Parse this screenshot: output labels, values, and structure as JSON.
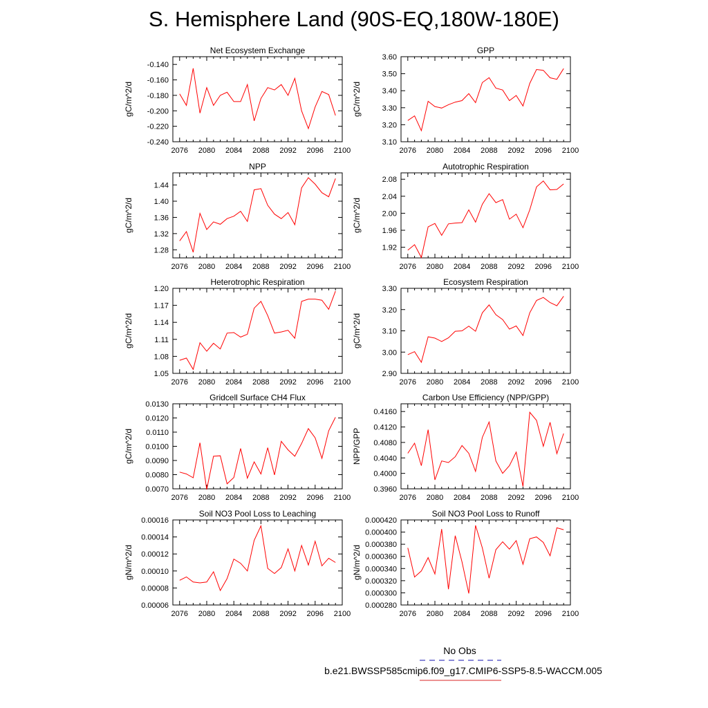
{
  "title": "S. Hemisphere Land (90S-EQ,180W-180E)",
  "legend": {
    "obs_label": "No Obs",
    "obs_color": "#4040c0",
    "model_label": "b.e21.BWSSP585cmip6.f09_g17.CMIP6-SSP5-8.5-WACCM.005",
    "model_color": "#e05050"
  },
  "series_color": "#ff0000",
  "chart_data": [
    {
      "type": "line",
      "title": "Net Ecosystem Exchange",
      "ylabel": "gC/m^2/d",
      "x": [
        2076,
        2077,
        2078,
        2079,
        2080,
        2081,
        2082,
        2083,
        2084,
        2085,
        2086,
        2087,
        2088,
        2089,
        2090,
        2091,
        2092,
        2093,
        2094,
        2095,
        2096,
        2097,
        2098,
        2099
      ],
      "values": [
        -0.178,
        -0.193,
        -0.145,
        -0.203,
        -0.17,
        -0.193,
        -0.18,
        -0.176,
        -0.188,
        -0.188,
        -0.166,
        -0.213,
        -0.184,
        -0.17,
        -0.173,
        -0.166,
        -0.18,
        -0.158,
        -0.2,
        -0.223,
        -0.195,
        -0.175,
        -0.179,
        -0.206
      ],
      "ylim": [
        -0.24,
        -0.13
      ],
      "yticks": [
        "-0.140",
        "-0.160",
        "-0.180",
        "-0.200",
        "-0.220",
        "-0.240"
      ],
      "xticks": [
        "2076",
        "2080",
        "2084",
        "2088",
        "2092",
        "2096",
        "2100"
      ]
    },
    {
      "type": "line",
      "title": "GPP",
      "ylabel": "gC/m^2/d",
      "x": [
        2076,
        2077,
        2078,
        2079,
        2080,
        2081,
        2082,
        2083,
        2084,
        2085,
        2086,
        2087,
        2088,
        2089,
        2090,
        2091,
        2092,
        2093,
        2094,
        2095,
        2096,
        2097,
        2098,
        2099
      ],
      "values": [
        3.225,
        3.252,
        3.165,
        3.338,
        3.307,
        3.298,
        3.318,
        3.333,
        3.342,
        3.383,
        3.33,
        3.448,
        3.477,
        3.415,
        3.404,
        3.342,
        3.372,
        3.31,
        3.443,
        3.525,
        3.52,
        3.476,
        3.467,
        3.53
      ],
      "ylim": [
        3.1,
        3.6
      ],
      "yticks": [
        "3.60",
        "3.50",
        "3.40",
        "3.30",
        "3.20",
        "3.10"
      ],
      "xticks": [
        "2076",
        "2080",
        "2084",
        "2088",
        "2092",
        "2096",
        "2100"
      ]
    },
    {
      "type": "line",
      "title": "NPP",
      "ylabel": "gC/m^2/d",
      "x": [
        2076,
        2077,
        2078,
        2079,
        2080,
        2081,
        2082,
        2083,
        2084,
        2085,
        2086,
        2087,
        2088,
        2089,
        2090,
        2091,
        2092,
        2093,
        2094,
        2095,
        2096,
        2097,
        2098,
        2099
      ],
      "values": [
        1.302,
        1.325,
        1.274,
        1.37,
        1.33,
        1.349,
        1.343,
        1.357,
        1.363,
        1.375,
        1.35,
        1.428,
        1.431,
        1.39,
        1.368,
        1.357,
        1.372,
        1.342,
        1.433,
        1.458,
        1.442,
        1.421,
        1.411,
        1.456
      ],
      "ylim": [
        1.26,
        1.47
      ],
      "yticks": [
        "1.44",
        "1.40",
        "1.36",
        "1.32",
        "1.28"
      ],
      "xticks": [
        "2076",
        "2080",
        "2084",
        "2088",
        "2092",
        "2096",
        "2100"
      ]
    },
    {
      "type": "line",
      "title": "Autotrophic Respiration",
      "ylabel": "gC/m^2/d",
      "x": [
        2076,
        2077,
        2078,
        2079,
        2080,
        2081,
        2082,
        2083,
        2084,
        2085,
        2086,
        2087,
        2088,
        2089,
        2090,
        2091,
        2092,
        2093,
        2094,
        2095,
        2096,
        2097,
        2098,
        2099
      ],
      "values": [
        1.913,
        1.926,
        1.896,
        1.968,
        1.976,
        1.948,
        1.975,
        1.977,
        1.978,
        2.008,
        1.979,
        2.021,
        2.046,
        2.025,
        2.032,
        1.986,
        1.998,
        1.966,
        2.008,
        2.062,
        2.076,
        2.055,
        2.056,
        2.069
      ],
      "ylim": [
        1.895,
        2.095
      ],
      "yticks": [
        "2.08",
        "2.04",
        "2.00",
        "1.96",
        "1.92"
      ],
      "xticks": [
        "2076",
        "2080",
        "2084",
        "2088",
        "2092",
        "2096",
        "2100"
      ]
    },
    {
      "type": "line",
      "title": "Heterotrophic Respiration",
      "ylabel": "gC/m^2/d",
      "x": [
        2076,
        2077,
        2078,
        2079,
        2080,
        2081,
        2082,
        2083,
        2084,
        2085,
        2086,
        2087,
        2088,
        2089,
        2090,
        2091,
        2092,
        2093,
        2094,
        2095,
        2096,
        2097,
        2098,
        2099
      ],
      "values": [
        1.073,
        1.077,
        1.057,
        1.104,
        1.089,
        1.103,
        1.093,
        1.121,
        1.122,
        1.114,
        1.119,
        1.165,
        1.177,
        1.152,
        1.121,
        1.123,
        1.126,
        1.112,
        1.177,
        1.181,
        1.181,
        1.179,
        1.163,
        1.195
      ],
      "ylim": [
        1.05,
        1.2
      ],
      "yticks": [
        "1.20",
        "1.17",
        "1.14",
        "1.11",
        "1.08",
        "1.05"
      ],
      "xticks": [
        "2076",
        "2080",
        "2084",
        "2088",
        "2092",
        "2096",
        "2100"
      ]
    },
    {
      "type": "line",
      "title": "Ecosystem Respiration",
      "ylabel": "gC/m^2/d",
      "x": [
        2076,
        2077,
        2078,
        2079,
        2080,
        2081,
        2082,
        2083,
        2084,
        2085,
        2086,
        2087,
        2088,
        2089,
        2090,
        2091,
        2092,
        2093,
        2094,
        2095,
        2096,
        2097,
        2098,
        2099
      ],
      "values": [
        2.988,
        3.002,
        2.952,
        3.072,
        3.066,
        3.05,
        3.067,
        3.098,
        3.1,
        3.122,
        3.098,
        3.185,
        3.222,
        3.176,
        3.153,
        3.108,
        3.123,
        3.078,
        3.185,
        3.243,
        3.257,
        3.233,
        3.218,
        3.263
      ],
      "ylim": [
        2.9,
        3.3
      ],
      "yticks": [
        "3.30",
        "3.20",
        "3.10",
        "3.00",
        "2.90"
      ],
      "xticks": [
        "2076",
        "2080",
        "2084",
        "2088",
        "2092",
        "2096",
        "2100"
      ]
    },
    {
      "type": "line",
      "title": "Gridcell Surface CH4 Flux",
      "ylabel": "gC/m^2/d",
      "x": [
        2076,
        2077,
        2078,
        2079,
        2080,
        2081,
        2082,
        2083,
        2084,
        2085,
        2086,
        2087,
        2088,
        2089,
        2090,
        2091,
        2092,
        2093,
        2094,
        2095,
        2096,
        2097,
        2098,
        2099
      ],
      "values": [
        0.00818,
        0.00805,
        0.00778,
        0.01025,
        0.00695,
        0.0093,
        0.00933,
        0.00735,
        0.0078,
        0.00985,
        0.00775,
        0.0089,
        0.00805,
        0.0099,
        0.00798,
        0.01035,
        0.00975,
        0.0093,
        0.0102,
        0.01125,
        0.0106,
        0.00915,
        0.0111,
        0.01205
      ],
      "ylim": [
        0.007,
        0.013
      ],
      "yticks": [
        "0.0130",
        "0.0120",
        "0.0110",
        "0.0100",
        "0.0090",
        "0.0080",
        "0.0070"
      ],
      "xticks": [
        "2076",
        "2080",
        "2084",
        "2088",
        "2092",
        "2096",
        "2100"
      ]
    },
    {
      "type": "line",
      "title": "Carbon Use Efficiency (NPP/GPP)",
      "ylabel": "NPP/GPP",
      "x": [
        2076,
        2077,
        2078,
        2079,
        2080,
        2081,
        2082,
        2083,
        2084,
        2085,
        2086,
        2087,
        2088,
        2089,
        2090,
        2091,
        2092,
        2093,
        2094,
        2095,
        2096,
        2097,
        2098,
        2099
      ],
      "values": [
        0.4052,
        0.4078,
        0.402,
        0.4113,
        0.3983,
        0.4032,
        0.4028,
        0.4043,
        0.4072,
        0.4052,
        0.4005,
        0.4093,
        0.4133,
        0.4032,
        0.4,
        0.402,
        0.4055,
        0.3966,
        0.4158,
        0.4137,
        0.407,
        0.4132,
        0.4051,
        0.4103
      ],
      "ylim": [
        0.396,
        0.418
      ],
      "yticks": [
        "0.4160",
        "0.4120",
        "0.4080",
        "0.4040",
        "0.4000",
        "0.3960"
      ],
      "xticks": [
        "2076",
        "2080",
        "2084",
        "2088",
        "2092",
        "2096",
        "2100"
      ]
    },
    {
      "type": "line",
      "title": "Soil NO3 Pool Loss to Leaching",
      "ylabel": "gN/m^2/d",
      "x": [
        2076,
        2077,
        2078,
        2079,
        2080,
        2081,
        2082,
        2083,
        2084,
        2085,
        2086,
        2087,
        2088,
        2089,
        2090,
        2091,
        2092,
        2093,
        2094,
        2095,
        2096,
        2097,
        2098,
        2099
      ],
      "values": [
        8.9e-05,
        9.3e-05,
        8.7e-05,
        8.6e-05,
        8.7e-05,
        9.9e-05,
        7.7e-05,
        9.1e-05,
        0.000114,
        0.000109,
        0.0001,
        0.000136,
        0.000153,
        0.000103,
        9.7e-05,
        0.000104,
        0.000126,
        0.0001,
        0.00013,
        0.000107,
        0.000135,
        0.000106,
        0.000115,
        0.00011
      ],
      "ylim": [
        6e-05,
        0.00016
      ],
      "yticks": [
        "0.00016",
        "0.00014",
        "0.00012",
        "0.00010",
        "0.00008",
        "0.00006"
      ],
      "xticks": [
        "2076",
        "2080",
        "2084",
        "2088",
        "2092",
        "2096",
        "2100"
      ]
    },
    {
      "type": "line",
      "title": "Soil NO3 Pool Loss to Runoff",
      "ylabel": "gN/m^2/d",
      "x": [
        2076,
        2077,
        2078,
        2079,
        2080,
        2081,
        2082,
        2083,
        2084,
        2085,
        2086,
        2087,
        2088,
        2089,
        2090,
        2091,
        2092,
        2093,
        2094,
        2095,
        2096,
        2097,
        2098,
        2099
      ],
      "values": [
        0.000374,
        0.000326,
        0.000336,
        0.000358,
        0.000331,
        0.000405,
        0.000306,
        0.000394,
        0.000351,
        0.000299,
        0.000411,
        0.000374,
        0.000324,
        0.000371,
        0.000384,
        0.000372,
        0.000386,
        0.000347,
        0.000389,
        0.000392,
        0.000383,
        0.000361,
        0.000407,
        0.000404
      ],
      "ylim": [
        0.00028,
        0.00042
      ],
      "yticks": [
        "0.000420",
        "0.000400",
        "0.000380",
        "0.000360",
        "0.000340",
        "0.000320",
        "0.000300",
        "0.000280"
      ],
      "xticks": [
        "2076",
        "2080",
        "2084",
        "2088",
        "2092",
        "2096",
        "2100"
      ]
    }
  ]
}
